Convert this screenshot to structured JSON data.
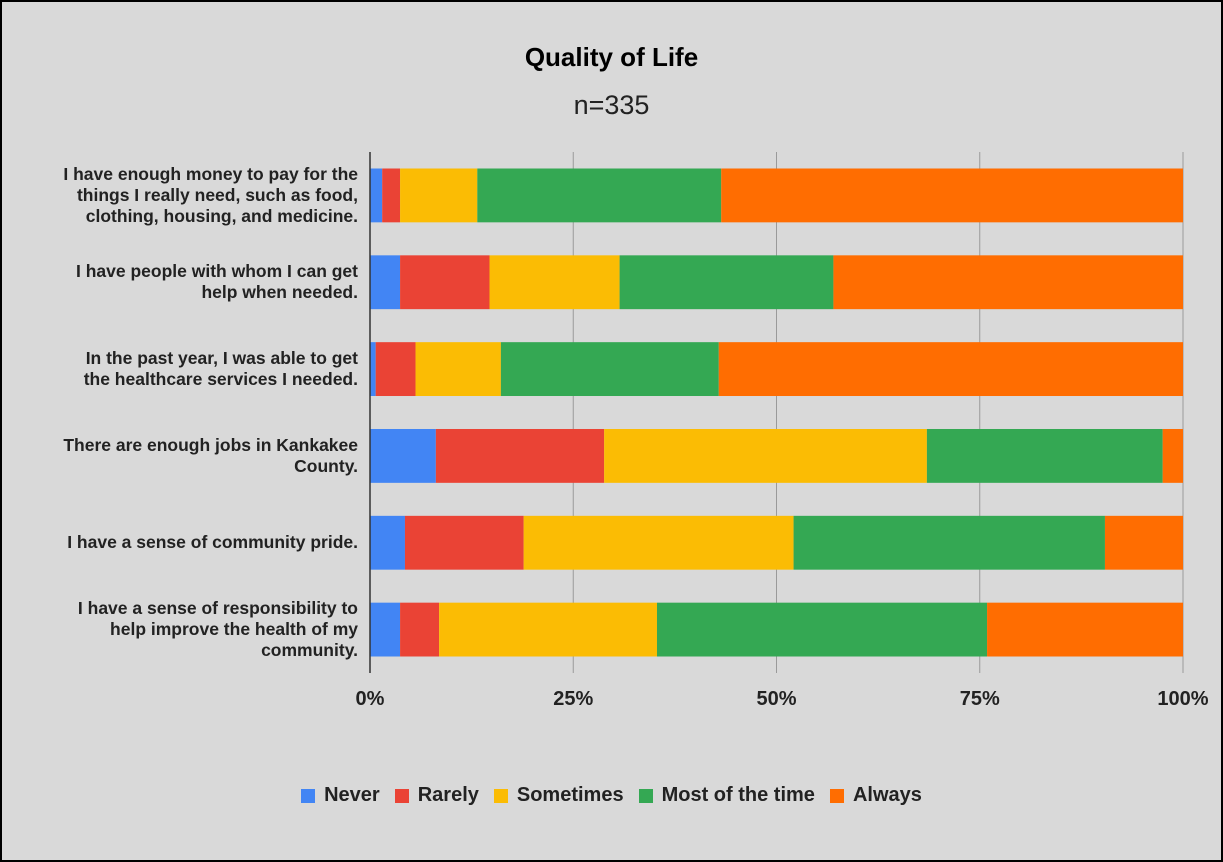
{
  "chart_data": {
    "type": "bar",
    "orientation": "horizontal",
    "stacked": true,
    "title": "Quality of Life",
    "subtitle": "n=335",
    "categories": [
      "I have enough money to pay for the things I really need, such as food, clothing, housing, and medicine.",
      "I have people with whom I can get help when needed.",
      "In the past year, I was able to get the healthcare services I needed.",
      "There are enough jobs in Kankakee County.",
      "I have a sense of community pride.",
      "I have a sense of responsibility to help improve the health of my community."
    ],
    "series": [
      {
        "name": "Never",
        "color": "#4285f4",
        "values": [
          1.5,
          3.7,
          0.7,
          8.1,
          4.3,
          3.7
        ]
      },
      {
        "name": "Rarely",
        "color": "#ea4335",
        "values": [
          2.2,
          11.0,
          4.9,
          20.7,
          14.6,
          4.8
        ]
      },
      {
        "name": "Sometimes",
        "color": "#fbbc04",
        "values": [
          9.5,
          16.0,
          10.5,
          39.7,
          33.2,
          26.8
        ]
      },
      {
        "name": "Most of the time",
        "color": "#34a853",
        "values": [
          30.0,
          26.3,
          26.8,
          29.0,
          38.3,
          40.6
        ]
      },
      {
        "name": "Always",
        "color": "#ff6d01",
        "values": [
          56.8,
          43.0,
          57.1,
          2.5,
          9.6,
          24.1
        ]
      }
    ],
    "xlim": [
      0,
      100
    ],
    "x_ticks": [
      "0%",
      "25%",
      "50%",
      "75%",
      "100%"
    ],
    "grid": true,
    "legend_position": "bottom"
  }
}
